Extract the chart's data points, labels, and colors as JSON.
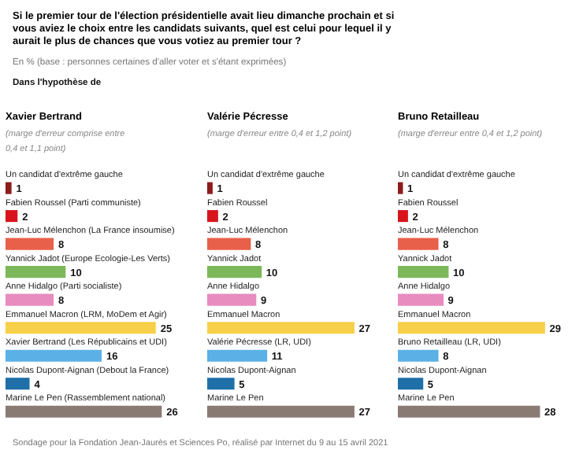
{
  "chart_data": [
    {
      "type": "bar",
      "orientation": "horizontal",
      "data_labels": true,
      "title": "Xavier Bertrand",
      "subtitle": "(marge d'erreur comprise entre 0,4 et 1,1 point)",
      "annotations": [
        "Si le premier tour de l'élection présidentielle avait lieu dimanche prochain et si vous aviez le choix entre les candidats suivants, quel est celui pour lequel il y aurait le plus de chances que vous votiez au premier tour ?",
        "En % (base : personnes certaines d'aller voter et s'étant exprimées)",
        "Dans l'hypothèse de",
        "Sondage pour la Fondation Jean-Jaurès et Sciences Po, réalisé par Internet du 9 au 15 avril 2021"
      ],
      "categories": [
        "Un candidat d'extrême gauche",
        "Fabien Roussel (Parti communiste)",
        "Jean-Luc Mélenchon (La France insoumise)",
        "Yannick Jadot (Europe Ecologie-Les Verts)",
        "Anne Hidalgo (Parti socialiste)",
        "Emmanuel Macron (LRM, MoDem et Agir)",
        "Xavier Bertrand (Les Républicains et UDI)",
        "Nicolas Dupont-Aignan (Debout la France)",
        "Marine Le Pen (Rassemblement national)"
      ],
      "values": [
        1,
        2,
        8,
        10,
        8,
        25,
        16,
        4,
        26
      ],
      "colors": [
        "#8c1c1c",
        "#d8141c",
        "#e8604a",
        "#7cb85a",
        "#e88cc0",
        "#f7cf48",
        "#5bb0e6",
        "#1f6fa8",
        "#8a7a74"
      ]
    },
    {
      "type": "bar",
      "orientation": "horizontal",
      "data_labels": true,
      "title": "Valérie Pécresse",
      "subtitle": "(marge d'erreur entre 0,4 et 1,2 point)",
      "categories": [
        "Un candidat d'extrême gauche",
        "Fabien Roussel",
        "Jean-Luc Mélenchon",
        "Yannick Jadot",
        "Anne Hidalgo",
        "Emmanuel Macron",
        "Valérie Pécresse (LR, UDI)",
        "Nicolas Dupont-Aignan",
        "Marine Le Pen"
      ],
      "values": [
        1,
        2,
        8,
        10,
        9,
        27,
        11,
        5,
        27
      ],
      "colors": [
        "#8c1c1c",
        "#d8141c",
        "#e8604a",
        "#7cb85a",
        "#e88cc0",
        "#f7cf48",
        "#5bb0e6",
        "#1f6fa8",
        "#8a7a74"
      ]
    },
    {
      "type": "bar",
      "orientation": "horizontal",
      "data_labels": true,
      "title": "Bruno Retailleau",
      "subtitle": "(marge d'erreur entre 0,4 et 1,2 point)",
      "categories": [
        "Un candidat d'extrême gauche",
        "Fabien Roussel",
        "Jean-Luc Mélenchon",
        "Yannick Jadot",
        "Anne Hidalgo",
        "Emmanuel Macron",
        "Bruno Retailleau (LR, UDI)",
        "Nicolas Dupont-Aignan",
        "Marine Le Pen"
      ],
      "values": [
        1,
        2,
        8,
        10,
        9,
        29,
        8,
        5,
        28
      ],
      "colors": [
        "#8c1c1c",
        "#d8141c",
        "#e8604a",
        "#7cb85a",
        "#e88cc0",
        "#f7cf48",
        "#5bb0e6",
        "#1f6fa8",
        "#8a7a74"
      ]
    }
  ]
}
